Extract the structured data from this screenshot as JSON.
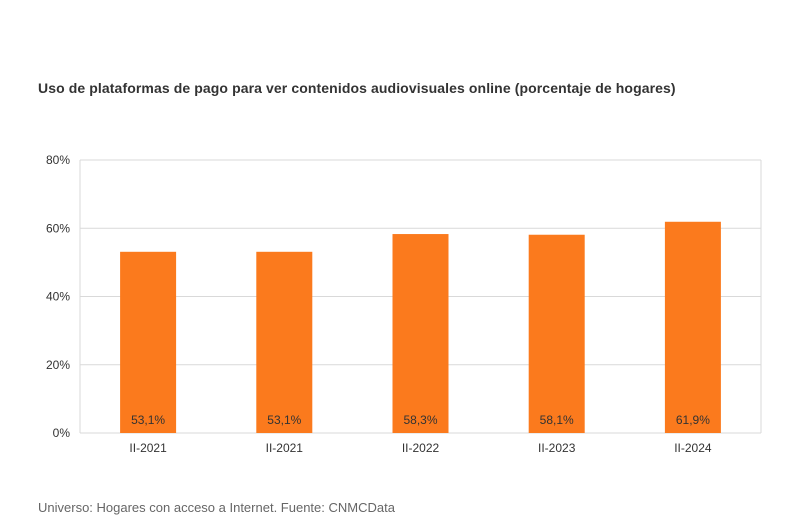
{
  "title": "Uso de plataformas de pago para ver contenidos audiovisuales online (porcentaje de hogares)",
  "footer": "Universo: Hogares con acceso a Internet. Fuente: CNMCData",
  "colors": {
    "bar": "#fb7a1d",
    "grid": "#d9d9d9",
    "text": "#333333"
  },
  "chart_data": {
    "type": "bar",
    "categories": [
      "II-2021",
      "II-2021",
      "II-2022",
      "II-2023",
      "II-2024"
    ],
    "values": [
      53.1,
      53.1,
      58.3,
      58.1,
      61.9
    ],
    "data_labels": [
      "53,1%",
      "53,1%",
      "58,3%",
      "58,1%",
      "61,9%"
    ],
    "title": "Uso de plataformas de pago para ver contenidos audiovisuales online (porcentaje de hogares)",
    "xlabel": "",
    "ylabel": "",
    "ylim": [
      0,
      80
    ],
    "y_ticks": [
      0,
      20,
      40,
      60,
      80
    ],
    "y_tick_labels": [
      "0%",
      "20%",
      "40%",
      "60%",
      "80%"
    ],
    "grid": true,
    "legend": "none"
  }
}
